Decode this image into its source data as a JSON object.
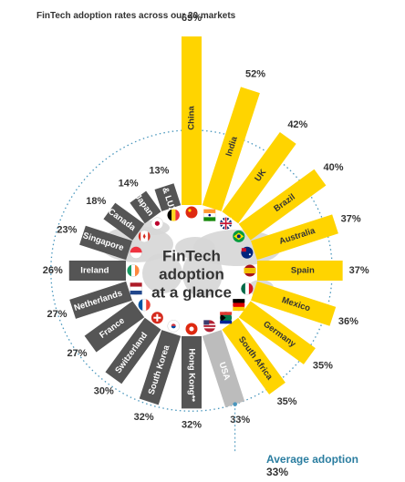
{
  "title": "FinTech adoption rates across our 20 markets",
  "center_text": [
    "FinTech",
    "adoption",
    "at a glance"
  ],
  "average": {
    "label": "Average adoption",
    "value": "33%"
  },
  "colors": {
    "above_average": "#ffd400",
    "at_average": "#bcbcbc",
    "below_average": "#555555",
    "dot_ring": "#4a97bd",
    "map": "#d6d6d6"
  },
  "chart_data": {
    "type": "bar",
    "layout": "radial",
    "title": "FinTech adoption rates across our 20 markets",
    "categories": [
      "China",
      "India",
      "UK",
      "Brazil",
      "Australia",
      "Spain",
      "Mexico",
      "Germany",
      "South Africa",
      "USA",
      "Hong Kong**",
      "South Korea",
      "Switzerland",
      "France",
      "Netherlands",
      "Ireland",
      "Singapore",
      "Canada",
      "Japan",
      "BE & LUX*"
    ],
    "values": [
      69,
      52,
      42,
      40,
      37,
      37,
      36,
      35,
      35,
      33,
      32,
      32,
      30,
      27,
      27,
      26,
      23,
      18,
      14,
      13
    ],
    "labels": [
      "69%",
      "52%",
      "42%",
      "40%",
      "37%",
      "37%",
      "36%",
      "35%",
      "35%",
      "33%",
      "32%",
      "32%",
      "30%",
      "27%",
      "27%",
      "26%",
      "23%",
      "18%",
      "14%",
      "13%"
    ],
    "average": 33
  }
}
